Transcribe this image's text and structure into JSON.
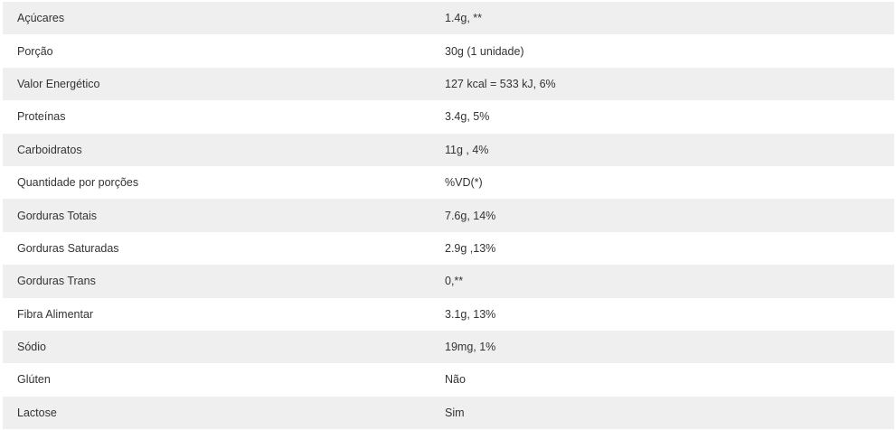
{
  "nutrition_table": {
    "rows": [
      {
        "label": "Açúcares",
        "value": "1.4g, **"
      },
      {
        "label": "Porção",
        "value": "30g (1 unidade)"
      },
      {
        "label": "Valor Energético",
        "value": "127 kcal = 533 kJ, 6%"
      },
      {
        "label": "Proteínas",
        "value": "3.4g, 5%"
      },
      {
        "label": "Carboidratos",
        "value": "11g , 4%"
      },
      {
        "label": "Quantidade por porções",
        "value": "%VD(*)"
      },
      {
        "label": "Gorduras Totais",
        "value": "7.6g, 14%"
      },
      {
        "label": "Gorduras Saturadas",
        "value": "2.9g ,13%"
      },
      {
        "label": "Gorduras Trans",
        "value": "0,**"
      },
      {
        "label": "Fibra Alimentar",
        "value": "3.1g, 13%"
      },
      {
        "label": "Sódio",
        "value": "19mg, 1%"
      },
      {
        "label": "Glúten",
        "value": "Não"
      },
      {
        "label": "Lactose",
        "value": "Sim"
      }
    ],
    "colors": {
      "stripe": "#efefef",
      "text": "#333333"
    }
  }
}
